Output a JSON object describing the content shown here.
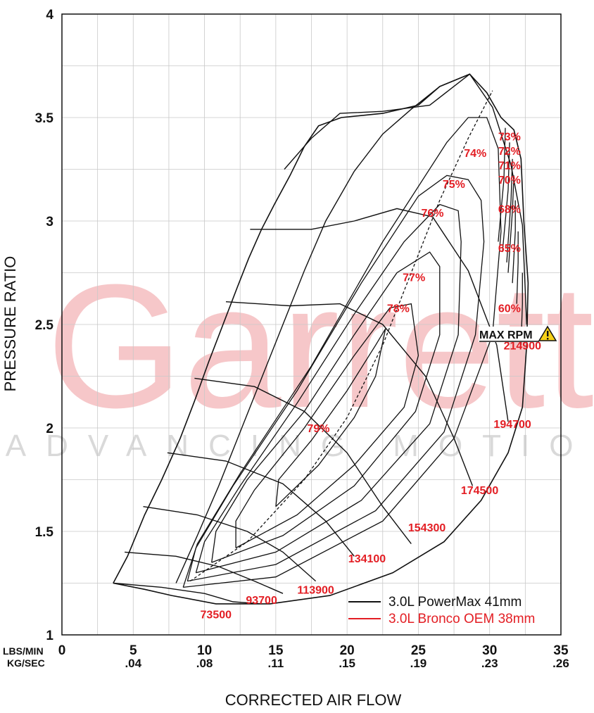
{
  "chart_data": {
    "type": "line",
    "title": "",
    "xlabel": "CORRECTED AIR FLOW",
    "ylabel": "PRESSURE RATIO",
    "x_unit_labels": [
      "LBS/MIN",
      "KG/SEC"
    ],
    "xlim": [
      0,
      35
    ],
    "ylim": [
      1,
      4
    ],
    "x_ticks": [
      {
        "value": 0,
        "label": "0",
        "kg": ""
      },
      {
        "value": 5,
        "label": "5",
        "kg": ".04"
      },
      {
        "value": 10,
        "label": "10",
        "kg": ".08"
      },
      {
        "value": 15,
        "label": "15",
        "kg": ".11"
      },
      {
        "value": 20,
        "label": "20",
        "kg": ".15"
      },
      {
        "value": 25,
        "label": "25",
        "kg": ".19"
      },
      {
        "value": 30,
        "label": "30",
        "kg": ".23"
      },
      {
        "value": 35,
        "label": "35",
        "kg": ".26"
      }
    ],
    "y_ticks": [
      {
        "value": 1,
        "label": "1"
      },
      {
        "value": 1.5,
        "label": "1.5"
      },
      {
        "value": 2,
        "label": "2"
      },
      {
        "value": 2.5,
        "label": "2.5"
      },
      {
        "value": 3,
        "label": "3"
      },
      {
        "value": 3.5,
        "label": "3.5"
      },
      {
        "value": 4,
        "label": "4"
      }
    ],
    "grid": true,
    "legend_position": "bottom-right",
    "watermark": {
      "main": "Garrett",
      "sub": "ADVANCING MOTION"
    },
    "max_rpm": {
      "label": "MAX RPM",
      "value": "214900",
      "icon": "warning-icon"
    },
    "series": [
      {
        "name": "3.0L PowerMax 41mm",
        "color": "#111111"
      },
      {
        "name": "3.0L Bronco OEM 38mm",
        "color": "#e31e24"
      }
    ],
    "map_outline": [
      [
        3.6,
        1.25
      ],
      [
        4.6,
        1.38
      ],
      [
        5.8,
        1.58
      ],
      [
        7.0,
        1.75
      ],
      [
        8.3,
        1.95
      ],
      [
        9.3,
        2.13
      ],
      [
        10.3,
        2.32
      ],
      [
        11.3,
        2.5
      ],
      [
        12.3,
        2.68
      ],
      [
        13.1,
        2.82
      ],
      [
        14.0,
        2.96
      ],
      [
        14.9,
        3.08
      ],
      [
        16.0,
        3.22
      ],
      [
        17.0,
        3.36
      ],
      [
        18.0,
        3.46
      ],
      [
        19.6,
        3.5
      ],
      [
        22.5,
        3.52
      ],
      [
        25.0,
        3.56
      ],
      [
        26.5,
        3.65
      ],
      [
        28.6,
        3.71
      ],
      [
        29.8,
        3.62
      ],
      [
        30.8,
        3.5
      ],
      [
        31.7,
        3.44
      ],
      [
        32.2,
        3.3
      ],
      [
        32.4,
        3.0
      ],
      [
        32.7,
        2.7
      ],
      [
        32.6,
        2.4
      ],
      [
        32.3,
        2.1
      ],
      [
        31.3,
        1.88
      ],
      [
        29.4,
        1.65
      ],
      [
        26.8,
        1.45
      ],
      [
        23.2,
        1.3
      ],
      [
        18.8,
        1.19
      ],
      [
        14.6,
        1.15
      ],
      [
        10.8,
        1.15
      ],
      [
        7.7,
        1.19
      ],
      [
        5.8,
        1.22
      ],
      [
        3.6,
        1.25
      ]
    ],
    "surge_top_line": [
      [
        8.0,
        1.25
      ],
      [
        9.5,
        1.48
      ],
      [
        11.0,
        1.72
      ],
      [
        12.5,
        1.98
      ],
      [
        14.0,
        2.24
      ],
      [
        15.5,
        2.5
      ],
      [
        17.0,
        2.76
      ],
      [
        18.5,
        3.0
      ],
      [
        20.5,
        3.24
      ],
      [
        22.5,
        3.42
      ],
      [
        24.5,
        3.54
      ],
      [
        26.5,
        3.65
      ],
      [
        28.6,
        3.71
      ]
    ],
    "speed_lines": [
      {
        "label": "73500",
        "points": [
          [
            3.6,
            1.25
          ],
          [
            7.0,
            1.23
          ],
          [
            10.0,
            1.2
          ],
          [
            12.0,
            1.16
          ],
          [
            14.0,
            1.15
          ]
        ]
      },
      {
        "label": "93700",
        "points": [
          [
            4.4,
            1.4
          ],
          [
            8.0,
            1.38
          ],
          [
            11.0,
            1.33
          ],
          [
            13.5,
            1.26
          ],
          [
            15.5,
            1.2
          ]
        ]
      },
      {
        "label": "113900",
        "points": [
          [
            5.7,
            1.62
          ],
          [
            9.5,
            1.58
          ],
          [
            13.0,
            1.5
          ],
          [
            15.5,
            1.4
          ],
          [
            17.8,
            1.26
          ]
        ]
      },
      {
        "label": "134100",
        "points": [
          [
            7.4,
            1.88
          ],
          [
            11.5,
            1.84
          ],
          [
            15.5,
            1.73
          ],
          [
            18.5,
            1.55
          ],
          [
            20.5,
            1.38
          ]
        ]
      },
      {
        "label": "154300",
        "points": [
          [
            9.3,
            2.24
          ],
          [
            13.5,
            2.2
          ],
          [
            17.0,
            2.08
          ],
          [
            20.0,
            1.88
          ],
          [
            22.5,
            1.62
          ],
          [
            24.5,
            1.44
          ]
        ]
      },
      {
        "label": "174500",
        "points": [
          [
            11.5,
            2.61
          ],
          [
            16.0,
            2.59
          ],
          [
            19.5,
            2.6
          ],
          [
            22.5,
            2.5
          ],
          [
            25.5,
            2.25
          ],
          [
            27.5,
            1.95
          ],
          [
            28.8,
            1.72
          ]
        ]
      },
      {
        "label": "194700",
        "points": [
          [
            13.2,
            2.96
          ],
          [
            17.5,
            2.96
          ],
          [
            20.5,
            3.0
          ],
          [
            23.5,
            3.06
          ],
          [
            26.0,
            3.02
          ],
          [
            28.5,
            2.76
          ],
          [
            30.5,
            2.4
          ],
          [
            31.3,
            2.03
          ]
        ]
      },
      {
        "label": "214900",
        "points": [
          [
            15.6,
            3.25
          ],
          [
            17.5,
            3.4
          ],
          [
            19.5,
            3.52
          ],
          [
            22.5,
            3.53
          ],
          [
            25.8,
            3.56
          ],
          [
            28.6,
            3.71
          ],
          [
            30.2,
            3.55
          ],
          [
            31.5,
            3.27
          ],
          [
            32.3,
            2.98
          ],
          [
            32.6,
            2.5
          ]
        ]
      }
    ],
    "efficiency_islands": [
      {
        "label": "79%",
        "points": [
          [
            15.0,
            1.62
          ],
          [
            18.0,
            1.82
          ],
          [
            20.5,
            2.05
          ],
          [
            22.0,
            2.25
          ],
          [
            22.7,
            2.48
          ],
          [
            22.0,
            2.4
          ],
          [
            20.0,
            2.18
          ],
          [
            17.5,
            1.94
          ],
          [
            15.2,
            1.75
          ],
          [
            15.0,
            1.62
          ]
        ]
      },
      {
        "label": "78%",
        "points": [
          [
            12.2,
            1.42
          ],
          [
            16.5,
            1.58
          ],
          [
            20.5,
            1.82
          ],
          [
            24.0,
            2.1
          ],
          [
            25.0,
            2.35
          ],
          [
            24.5,
            2.6
          ],
          [
            23.0,
            2.58
          ],
          [
            20.5,
            2.35
          ],
          [
            17.0,
            2.0
          ],
          [
            13.5,
            1.7
          ],
          [
            12.2,
            1.55
          ],
          [
            12.2,
            1.42
          ]
        ]
      },
      {
        "label": "77%",
        "points": [
          [
            10.5,
            1.35
          ],
          [
            15.5,
            1.48
          ],
          [
            20.5,
            1.72
          ],
          [
            24.8,
            2.08
          ],
          [
            26.5,
            2.45
          ],
          [
            26.5,
            2.78
          ],
          [
            25.8,
            2.85
          ],
          [
            23.5,
            2.75
          ],
          [
            20.5,
            2.45
          ],
          [
            17.0,
            2.08
          ],
          [
            13.0,
            1.75
          ],
          [
            10.8,
            1.5
          ],
          [
            10.5,
            1.35
          ]
        ]
      },
      {
        "label": "76%",
        "points": [
          [
            9.4,
            1.3
          ],
          [
            15.0,
            1.4
          ],
          [
            21.0,
            1.65
          ],
          [
            25.8,
            2.02
          ],
          [
            27.8,
            2.45
          ],
          [
            28.0,
            2.9
          ],
          [
            27.8,
            3.05
          ],
          [
            26.5,
            3.08
          ],
          [
            24.0,
            2.9
          ],
          [
            20.5,
            2.55
          ],
          [
            16.5,
            2.12
          ],
          [
            12.5,
            1.72
          ],
          [
            10.0,
            1.45
          ],
          [
            9.4,
            1.3
          ]
        ]
      },
      {
        "label": "75%",
        "points": [
          [
            8.8,
            1.26
          ],
          [
            15.0,
            1.34
          ],
          [
            22.0,
            1.6
          ],
          [
            26.8,
            1.98
          ],
          [
            29.0,
            2.45
          ],
          [
            29.6,
            2.9
          ],
          [
            29.4,
            3.1
          ],
          [
            28.5,
            3.2
          ],
          [
            27.0,
            3.22
          ],
          [
            25.0,
            3.12
          ],
          [
            21.0,
            2.7
          ],
          [
            16.5,
            2.18
          ],
          [
            12.0,
            1.72
          ],
          [
            9.4,
            1.42
          ],
          [
            8.8,
            1.26
          ]
        ]
      },
      {
        "label": "74%",
        "points": [
          [
            8.5,
            1.23
          ],
          [
            15.0,
            1.28
          ],
          [
            22.5,
            1.55
          ],
          [
            27.5,
            1.95
          ],
          [
            30.2,
            2.45
          ],
          [
            30.8,
            2.95
          ],
          [
            30.6,
            3.35
          ],
          [
            29.8,
            3.5
          ],
          [
            28.5,
            3.5
          ],
          [
            27.0,
            3.38
          ],
          [
            22.5,
            2.9
          ],
          [
            17.5,
            2.3
          ],
          [
            12.5,
            1.78
          ],
          [
            9.5,
            1.44
          ],
          [
            8.5,
            1.23
          ]
        ]
      },
      {
        "label": "73%",
        "points": [
          [
            30.6,
            2.9
          ],
          [
            31.0,
            3.2
          ],
          [
            31.1,
            3.45
          ]
        ]
      },
      {
        "label": "72%",
        "points": [
          [
            30.9,
            2.85
          ],
          [
            31.3,
            3.15
          ],
          [
            31.4,
            3.38
          ]
        ]
      },
      {
        "label": "71%",
        "points": [
          [
            31.2,
            2.8
          ],
          [
            31.5,
            3.1
          ],
          [
            31.6,
            3.3
          ]
        ]
      },
      {
        "label": "70%",
        "points": [
          [
            31.3,
            2.75
          ],
          [
            31.6,
            3.05
          ],
          [
            31.7,
            3.22
          ]
        ]
      },
      {
        "label": "68%",
        "points": [
          [
            31.6,
            2.7
          ],
          [
            31.8,
            2.95
          ],
          [
            31.8,
            3.1
          ]
        ]
      },
      {
        "label": "65%",
        "points": [
          [
            31.9,
            2.6
          ],
          [
            32.0,
            2.8
          ],
          [
            32.0,
            2.95
          ]
        ]
      },
      {
        "label": "60%",
        "points": [
          [
            32.2,
            2.4
          ],
          [
            32.3,
            2.6
          ],
          [
            32.3,
            2.75
          ]
        ]
      }
    ],
    "peak_efficiency_line": [
      [
        9.0,
        1.26
      ],
      [
        13.0,
        1.45
      ],
      [
        17.0,
        1.75
      ],
      [
        20.0,
        2.05
      ],
      [
        22.5,
        2.4
      ],
      [
        24.5,
        2.75
      ],
      [
        26.5,
        3.1
      ],
      [
        28.5,
        3.4
      ],
      [
        30.2,
        3.63
      ]
    ]
  }
}
